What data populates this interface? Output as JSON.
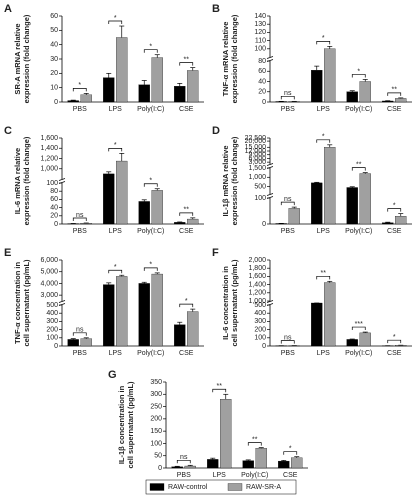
{
  "chart_data": [
    {
      "type": "bar",
      "label": "A",
      "ylabel": [
        "SR-A mRNA relative",
        "expression (fold change)"
      ],
      "categories": [
        "PBS",
        "LPS",
        "Poly(I:C)",
        "CSE"
      ],
      "series": [
        {
          "color": "#000000",
          "values": [
            1,
            17,
            12,
            11
          ],
          "errors": [
            0.3,
            3,
            3,
            2
          ]
        },
        {
          "color": "#a0a0a0",
          "values": [
            5,
            45,
            31,
            22
          ],
          "errors": [
            1,
            8,
            2,
            2
          ]
        }
      ],
      "significance": [
        "*",
        "*",
        "*",
        "**"
      ],
      "ylim": [
        0,
        60
      ],
      "yticks": [
        0,
        10,
        20,
        30,
        40,
        50,
        60
      ]
    },
    {
      "type": "bar",
      "label": "B",
      "ylabel": [
        "TNF-α mRNA relative",
        "expression (fold change)"
      ],
      "categories": [
        "PBS",
        "LPS",
        "Poly(I:C)",
        "CSE"
      ],
      "series": [
        {
          "color": "#000000",
          "values": [
            1,
            62,
            20,
            2
          ],
          "errors": [
            0.3,
            8,
            2,
            0.5
          ]
        },
        {
          "color": "#a0a0a0",
          "values": [
            1,
            100,
            40,
            7
          ],
          "errors": [
            0.3,
            3,
            4,
            1
          ]
        }
      ],
      "significance": [
        "ns",
        "*",
        "*",
        "**"
      ],
      "ylim": [
        0,
        140
      ],
      "y_segments": [
        [
          0,
          80
        ],
        [
          90,
          140
        ]
      ],
      "yticks": [
        0,
        20,
        40,
        60,
        80,
        100,
        110,
        120,
        130,
        140
      ]
    },
    {
      "type": "bar",
      "label": "C",
      "ylabel": [
        "IL-6 mRNA relative",
        "expression (fold change)"
      ],
      "categories": [
        "PBS",
        "LPS",
        "Poly(I:C)",
        "CSE"
      ],
      "series": [
        {
          "color": "#000000",
          "values": [
            1,
            900,
            55,
            4
          ],
          "errors": [
            0.3,
            40,
            4,
            1
          ]
        },
        {
          "color": "#a0a0a0",
          "values": [
            2,
            1150,
            82,
            12
          ],
          "errors": [
            0.5,
            150,
            4,
            3
          ]
        }
      ],
      "significance": [
        "ns",
        "*",
        "*",
        "**"
      ],
      "ylim": [
        0,
        1600
      ],
      "y_segments": [
        [
          0,
          100
        ],
        [
          800,
          1600
        ]
      ],
      "yticks": [
        0,
        20,
        40,
        60,
        80,
        100,
        {
          "value": 1000,
          "label": "1,000"
        },
        {
          "value": 1200,
          "label": "1,200"
        },
        {
          "value": 1400,
          "label": "1,400"
        },
        {
          "value": 1600,
          "label": "1,600"
        }
      ]
    },
    {
      "type": "bar",
      "label": "D",
      "ylabel": [
        "IL-1β mRNA relative",
        "expression (fold change)"
      ],
      "categories": [
        "PBS",
        "LPS",
        "Poly(I:C)",
        "CSE"
      ],
      "series": [
        {
          "color": "#000000",
          "values": [
            2,
            700,
            450,
            5
          ],
          "errors": [
            0.5,
            30,
            40,
            2
          ]
        },
        {
          "color": "#a0a0a0",
          "values": [
            60,
            15000,
            1200,
            30
          ],
          "errors": [
            5,
            2000,
            50,
            10
          ]
        }
      ],
      "significance": [
        "ns",
        "*",
        "**",
        "*"
      ],
      "ylim": [
        0,
        22500
      ],
      "y_segments": [
        [
          0,
          100
        ],
        [
          100,
          1500
        ],
        [
          1500,
          22500
        ]
      ],
      "yticks": [
        0,
        100,
        500,
        {
          "value": 1000,
          "label": "1,000"
        },
        {
          "value": 1500,
          "label": "1,500"
        },
        {
          "value": 3000,
          "label": "3,000"
        },
        {
          "value": 6000,
          "label": "6,000"
        },
        {
          "value": 9000,
          "label": "9,000"
        },
        {
          "value": 12000,
          "label": "12,000"
        },
        {
          "value": 15000,
          "label": "15,000"
        },
        {
          "value": 20000,
          "label": "20,000"
        },
        {
          "value": 22500,
          "label": "22,500"
        }
      ]
    },
    {
      "type": "bar",
      "label": "E",
      "ylabel": [
        "TNF-α concentration in",
        "cell supernatant (pg/mL)"
      ],
      "categories": [
        "PBS",
        "LPS",
        "Poly(I:C)",
        "CSE"
      ],
      "series": [
        {
          "color": "#000000",
          "values": [
            80,
            3900,
            4000,
            260
          ],
          "errors": [
            10,
            150,
            100,
            30
          ]
        },
        {
          "color": "#a0a0a0",
          "values": [
            90,
            4600,
            4800,
            420
          ],
          "errors": [
            10,
            100,
            100,
            30
          ]
        }
      ],
      "significance": [
        "ns",
        "*",
        "*",
        "*"
      ],
      "ylim": [
        0,
        6000
      ],
      "y_segments": [
        [
          0,
          500
        ],
        [
          2500,
          6000
        ]
      ],
      "yticks": [
        0,
        100,
        200,
        300,
        400,
        500,
        {
          "value": 3000,
          "label": "3,000"
        },
        {
          "value": 4000,
          "label": "4,000"
        },
        {
          "value": 5000,
          "label": "5,000"
        },
        {
          "value": 6000,
          "label": "6,000"
        }
      ]
    },
    {
      "type": "bar",
      "label": "F",
      "ylabel": [
        "IL-6 concentration in",
        "cell supernatant (pg/mL)"
      ],
      "categories": [
        "PBS",
        "LPS",
        "Poly(I:C)",
        "CSE"
      ],
      "series": [
        {
          "color": "#000000",
          "values": [
            3,
            600,
            80,
            3
          ],
          "errors": [
            1,
            20,
            5,
            1
          ]
        },
        {
          "color": "#a0a0a0",
          "values": [
            4,
            1450,
            160,
            8
          ],
          "errors": [
            1,
            30,
            10,
            2
          ]
        }
      ],
      "significance": [
        "ns",
        "**",
        "***",
        "*"
      ],
      "ylim": [
        0,
        2000
      ],
      "y_segments": [
        [
          0,
          500
        ],
        [
          1000,
          2000
        ]
      ],
      "yticks": [
        0,
        100,
        200,
        300,
        400,
        500,
        {
          "value": 1000,
          "label": "1,000"
        },
        {
          "value": 1200,
          "label": "1,200"
        },
        {
          "value": 1400,
          "label": "1,400"
        },
        {
          "value": 1600,
          "label": "1,600"
        },
        {
          "value": 1800,
          "label": "1,800"
        },
        {
          "value": 2000,
          "label": "2,000"
        }
      ]
    },
    {
      "type": "bar",
      "label": "G",
      "ylabel": [
        "IL-1β concentration in",
        "cell supernatant (pg/mL)"
      ],
      "categories": [
        "PBS",
        "LPS",
        "Poly(I:C)",
        "CSE"
      ],
      "series": [
        {
          "name": "RAW-control",
          "color": "#000000",
          "values": [
            5,
            35,
            30,
            28
          ],
          "errors": [
            2,
            5,
            3,
            3
          ]
        },
        {
          "name": "RAW-SR-A",
          "color": "#a0a0a0",
          "values": [
            8,
            280,
            80,
            42
          ],
          "errors": [
            3,
            20,
            3,
            4
          ]
        }
      ],
      "significance": [
        "ns",
        "**",
        "**",
        "*"
      ],
      "ylim": [
        0,
        350
      ],
      "yticks": [
        0,
        50,
        100,
        150,
        200,
        250,
        300,
        350
      ],
      "legend": "bottom"
    }
  ]
}
